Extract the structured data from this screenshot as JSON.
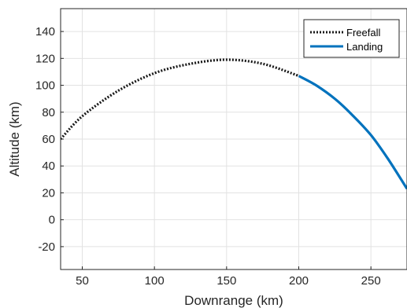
{
  "chart_data": {
    "type": "line",
    "title": "",
    "xlabel": "Downrange (km)",
    "ylabel": "Altitude (km)",
    "xlim": [
      35,
      275
    ],
    "ylim": [
      -37,
      157
    ],
    "x_ticks": [
      50,
      100,
      150,
      200,
      250
    ],
    "y_ticks": [
      -20,
      0,
      20,
      40,
      60,
      80,
      100,
      120,
      140
    ],
    "grid": true,
    "legend_position": "top-right",
    "series": [
      {
        "name": "Freefall",
        "line_style": "dotted",
        "color": "#1a1a1a",
        "x": [
          35,
          50,
          75,
          100,
          125,
          150,
          175,
          200
        ],
        "y": [
          60,
          77,
          96,
          109,
          116,
          119,
          116,
          107
        ]
      },
      {
        "name": "Landing",
        "line_style": "solid",
        "color": "#0072BD",
        "x": [
          200,
          212,
          225,
          237,
          250,
          262,
          275
        ],
        "y": [
          107,
          100,
          90,
          78,
          63,
          45,
          23
        ]
      }
    ]
  }
}
